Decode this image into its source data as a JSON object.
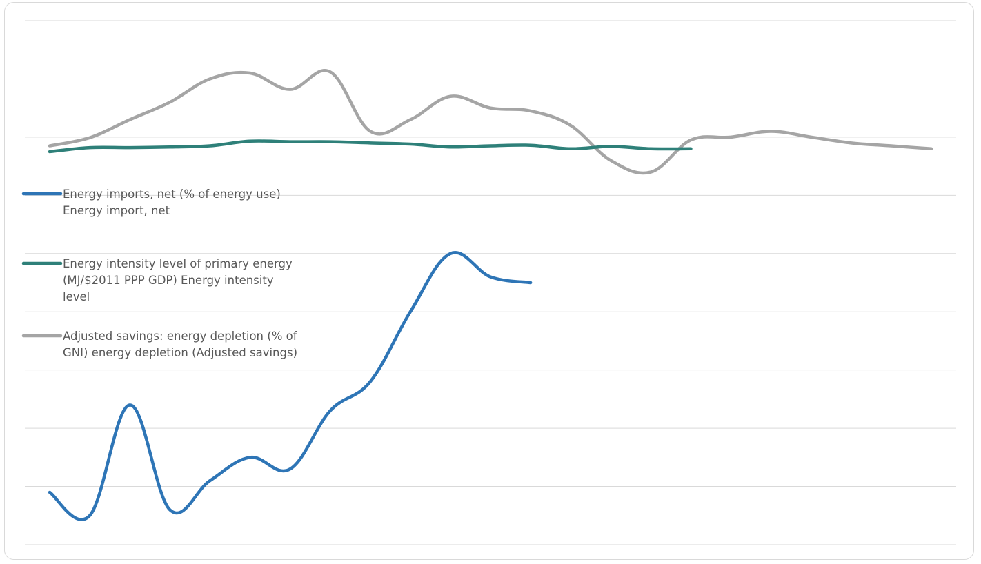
{
  "chart_data": {
    "type": "line",
    "title": "",
    "xlabel": "",
    "ylabel": "",
    "ylim": [
      0,
      9
    ],
    "grid": true,
    "legend_placement": "center-left",
    "x": [
      1,
      2,
      3,
      4,
      5,
      6,
      7,
      8,
      9,
      10,
      11,
      12,
      13,
      14,
      15,
      16,
      17,
      18,
      19,
      20,
      21,
      22,
      23
    ],
    "series": [
      {
        "name": "Energy imports, net (% of energy use) Energy import, net",
        "name_lines": [
          "Energy imports, net (% of energy use)",
          "Energy import, net"
        ],
        "color": "#2e75b6",
        "values": [
          0.9,
          0.5,
          2.4,
          0.6,
          1.1,
          1.5,
          1.3,
          2.3,
          2.8,
          4.0,
          5.0,
          4.6,
          4.5,
          null,
          null,
          null,
          null,
          null,
          null,
          null,
          null,
          null,
          null
        ]
      },
      {
        "name": "Energy intensity level of primary energy (MJ/$2011 PPP GDP) Energy intensity level",
        "name_lines": [
          "Energy intensity level of primary energy",
          "(MJ/$2011 PPP GDP) Energy intensity",
          "level"
        ],
        "color": "#2e8079",
        "values": [
          6.75,
          6.82,
          6.82,
          6.83,
          6.85,
          6.93,
          6.92,
          6.92,
          6.9,
          6.88,
          6.83,
          6.85,
          6.86,
          6.8,
          6.84,
          6.8,
          6.8,
          null,
          null,
          null,
          null,
          null,
          null
        ]
      },
      {
        "name": "Adjusted savings: energy depletion (% of GNI) energy depletion (Adjusted savings)",
        "name_lines": [
          "Adjusted savings: energy depletion (% of",
          "GNI) energy depletion (Adjusted savings)"
        ],
        "color": "#a5a5a5",
        "values": [
          6.85,
          6.99,
          7.3,
          7.6,
          8.0,
          8.1,
          7.82,
          8.12,
          7.1,
          7.3,
          7.7,
          7.5,
          7.45,
          7.2,
          6.6,
          6.4,
          6.95,
          7.0,
          7.1,
          7.0,
          6.9,
          6.85,
          6.8
        ]
      }
    ]
  }
}
